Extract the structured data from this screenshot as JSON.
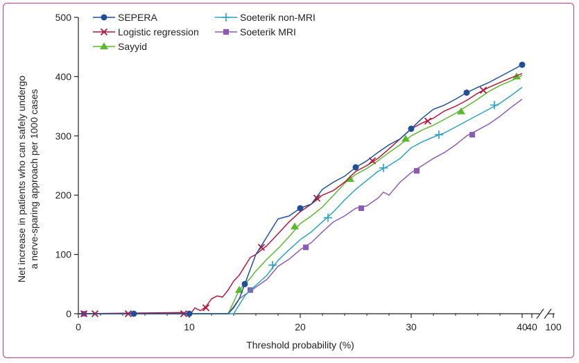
{
  "chart_data": {
    "type": "line",
    "xlabel": "Threshold probability (%)",
    "ylabel_line1": "Net increase in patients who can safely undergo",
    "ylabel_line2": "a nerve-sparing approach per 1000 cases",
    "xlim": [
      0,
      40
    ],
    "ylim": [
      0,
      500
    ],
    "x_ticks": [
      "0",
      "10",
      "20",
      "30",
      "40"
    ],
    "x_break_ticks": [
      "40",
      "100"
    ],
    "y_ticks": [
      "0",
      "100",
      "200",
      "300",
      "400",
      "500"
    ],
    "grid": false,
    "legend_position": "top-left",
    "series": [
      {
        "name": "SEPERA",
        "color": "#1f4f99",
        "marker": "circle",
        "x": [
          0,
          10,
          13.5,
          14,
          14.5,
          15,
          15.5,
          16,
          17,
          18,
          19,
          20,
          21,
          22,
          23,
          24,
          25,
          26,
          27,
          28,
          29,
          30,
          31,
          32,
          33,
          34,
          35,
          36,
          37,
          38,
          39,
          40
        ],
        "y": [
          0,
          0,
          0,
          10,
          25,
          50,
          75,
          100,
          130,
          160,
          165,
          178,
          185,
          210,
          222,
          232,
          247,
          258,
          272,
          285,
          295,
          312,
          330,
          345,
          352,
          362,
          373,
          382,
          390,
          400,
          410,
          420
        ],
        "marker_x": [
          5,
          10,
          15,
          20,
          25,
          30,
          35,
          40
        ],
        "marker_y": [
          0,
          0,
          50,
          178,
          247,
          312,
          373,
          420
        ]
      },
      {
        "name": "Logistic regression",
        "color": "#b5173b",
        "marker": "x",
        "x": [
          0,
          9.5,
          10,
          10.5,
          11,
          11.5,
          12,
          12.5,
          13,
          13.5,
          14,
          14.5,
          15,
          15.5,
          16,
          17,
          18,
          19,
          20,
          21,
          22,
          23,
          24,
          25,
          26,
          27,
          28,
          29,
          30,
          31,
          32,
          33,
          34,
          35,
          36,
          37,
          38,
          39,
          40
        ],
        "y": [
          0,
          2,
          -4,
          10,
          5,
          12,
          25,
          30,
          28,
          40,
          55,
          65,
          80,
          95,
          100,
          115,
          135,
          155,
          172,
          185,
          200,
          208,
          222,
          240,
          250,
          262,
          278,
          295,
          312,
          322,
          330,
          342,
          350,
          360,
          372,
          382,
          390,
          398,
          405
        ],
        "marker_x": [
          0.5,
          1.5,
          4.5,
          9.5,
          11.5,
          16.5,
          21.5,
          26.5,
          31.5,
          36.5
        ],
        "marker_y": [
          0,
          0,
          0,
          0,
          10,
          112,
          195,
          258,
          325,
          377
        ]
      },
      {
        "name": "Sayyid",
        "color": "#5cb82e",
        "marker": "triangle",
        "x": [
          0,
          13.5,
          14,
          14.5,
          15,
          15.5,
          16,
          17,
          18,
          19,
          20,
          21,
          22,
          23,
          24,
          25,
          26,
          27,
          28,
          29,
          30,
          31,
          32,
          33,
          34,
          35,
          36,
          37,
          38,
          39,
          40
        ],
        "y": [
          0,
          0,
          20,
          40,
          50,
          60,
          72,
          92,
          110,
          130,
          152,
          165,
          180,
          200,
          220,
          235,
          245,
          258,
          272,
          285,
          300,
          310,
          318,
          328,
          338,
          350,
          362,
          375,
          385,
          393,
          402
        ],
        "marker_x": [
          14.5,
          19.5,
          24.5,
          29.5,
          34.5,
          39.5
        ],
        "marker_y": [
          40,
          147,
          227,
          295,
          341,
          400
        ]
      },
      {
        "name": "Soeterik non-MRI",
        "color": "#2aa3c5",
        "marker": "plus",
        "x": [
          0,
          14,
          14.5,
          15,
          15.5,
          16,
          17,
          18,
          19,
          20,
          21,
          22,
          23,
          24,
          25,
          26,
          27,
          28,
          29,
          30,
          31,
          32,
          33,
          34,
          35,
          36,
          37,
          38,
          39,
          40
        ],
        "y": [
          0,
          0,
          15,
          30,
          40,
          48,
          65,
          90,
          108,
          125,
          138,
          155,
          172,
          192,
          210,
          225,
          240,
          250,
          262,
          280,
          290,
          298,
          305,
          315,
          325,
          335,
          345,
          355,
          368,
          382
        ],
        "marker_x": [
          17.5,
          22.5,
          27.5,
          32.5,
          37.5
        ],
        "marker_y": [
          82,
          162,
          246,
          302,
          352
        ]
      },
      {
        "name": "Soeterik MRI",
        "color": "#8c5bb8",
        "marker": "square",
        "x": [
          0,
          13.5,
          14,
          14.5,
          15,
          15.5,
          16,
          17,
          18,
          19,
          20,
          21,
          22,
          23,
          24,
          25,
          26,
          27,
          27.5,
          28,
          29,
          30,
          31,
          32,
          33,
          34,
          35,
          36,
          37,
          38,
          39,
          40
        ],
        "y": [
          0,
          0,
          12,
          25,
          32,
          38,
          45,
          58,
          80,
          92,
          108,
          120,
          138,
          155,
          165,
          178,
          182,
          195,
          205,
          200,
          222,
          238,
          250,
          262,
          272,
          285,
          300,
          310,
          320,
          333,
          348,
          362
        ],
        "marker_x": [
          0.5,
          15.5,
          20.5,
          25.5,
          30.5,
          35.5
        ],
        "marker_y": [
          0,
          40,
          112,
          178,
          241,
          302
        ]
      }
    ]
  }
}
